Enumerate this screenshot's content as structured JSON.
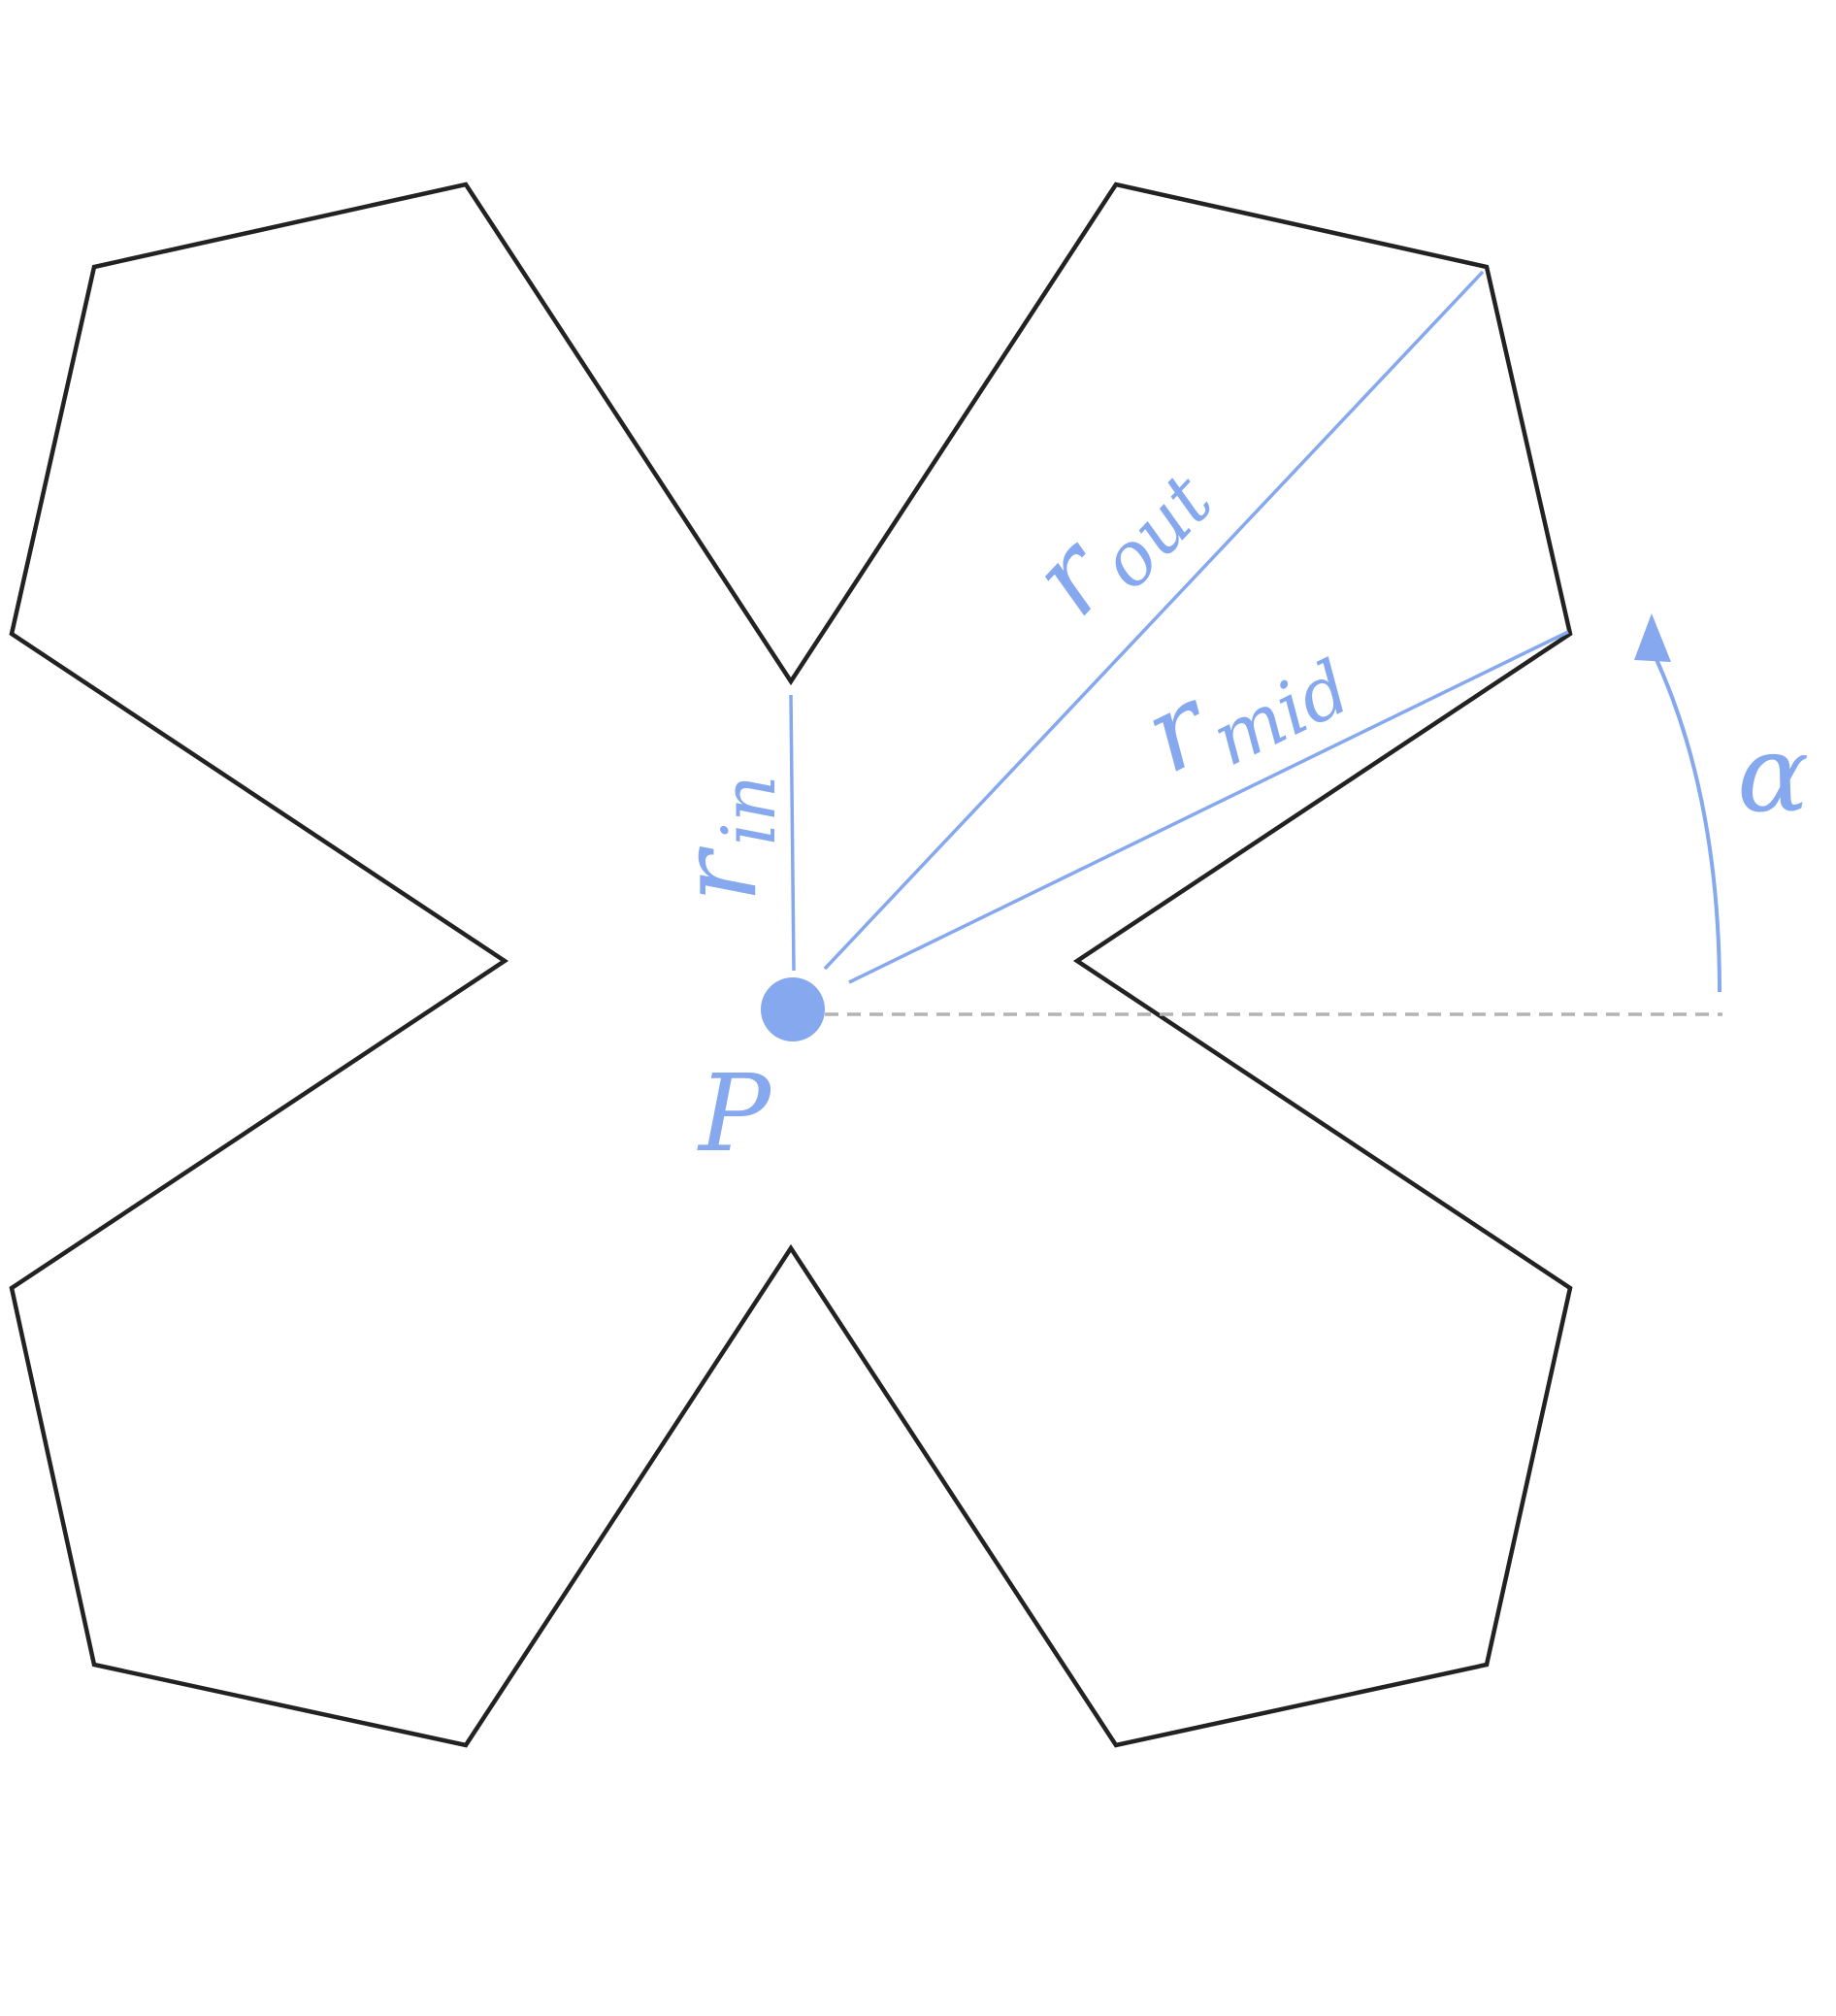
{
  "labels": {
    "r_out_base": "r",
    "r_out_sub": "out",
    "r_mid_base": "r",
    "r_mid_sub": "mid",
    "r_in_base": "r",
    "r_in_sub": "in",
    "alpha": "α",
    "point": "P"
  },
  "colors": {
    "shape_stroke": "#222222",
    "annotation": "#86a8ee",
    "reference_line": "#b3b3b3",
    "background": "#ffffff"
  }
}
